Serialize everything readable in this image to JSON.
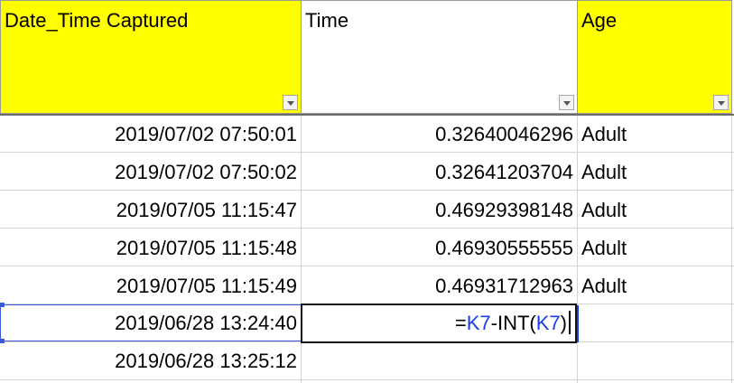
{
  "headers": {
    "date_time": "Date_Time Captured",
    "time": "Time",
    "age": "Age"
  },
  "colors": {
    "header_fill": "#ffff00",
    "selection": "#3b5bdb",
    "formula_reference": "#1a3ee8"
  },
  "icons": {
    "filter": "filter-dropdown-icon"
  },
  "rows": [
    {
      "date_time": "2019/07/02 07:50:01",
      "time": "0.32640046296",
      "age": "Adult"
    },
    {
      "date_time": "2019/07/02 07:50:02",
      "time": "0.32641203704",
      "age": "Adult"
    },
    {
      "date_time": "2019/07/05 11:15:47",
      "time": "0.46929398148",
      "age": "Adult"
    },
    {
      "date_time": "2019/07/05 11:15:48",
      "time": "0.46930555555",
      "age": "Adult"
    },
    {
      "date_time": "2019/07/05 11:15:49",
      "time": "0.46931712963",
      "age": "Adult"
    },
    {
      "date_time": "2019/06/28 13:24:40",
      "time": "",
      "age": ""
    },
    {
      "date_time": "2019/06/28 13:25:12",
      "time": "",
      "age": ""
    }
  ],
  "formula": {
    "prefix": "=",
    "ref1": "K7",
    "middle": "-INT(",
    "ref2": "K7",
    "suffix": ")"
  }
}
